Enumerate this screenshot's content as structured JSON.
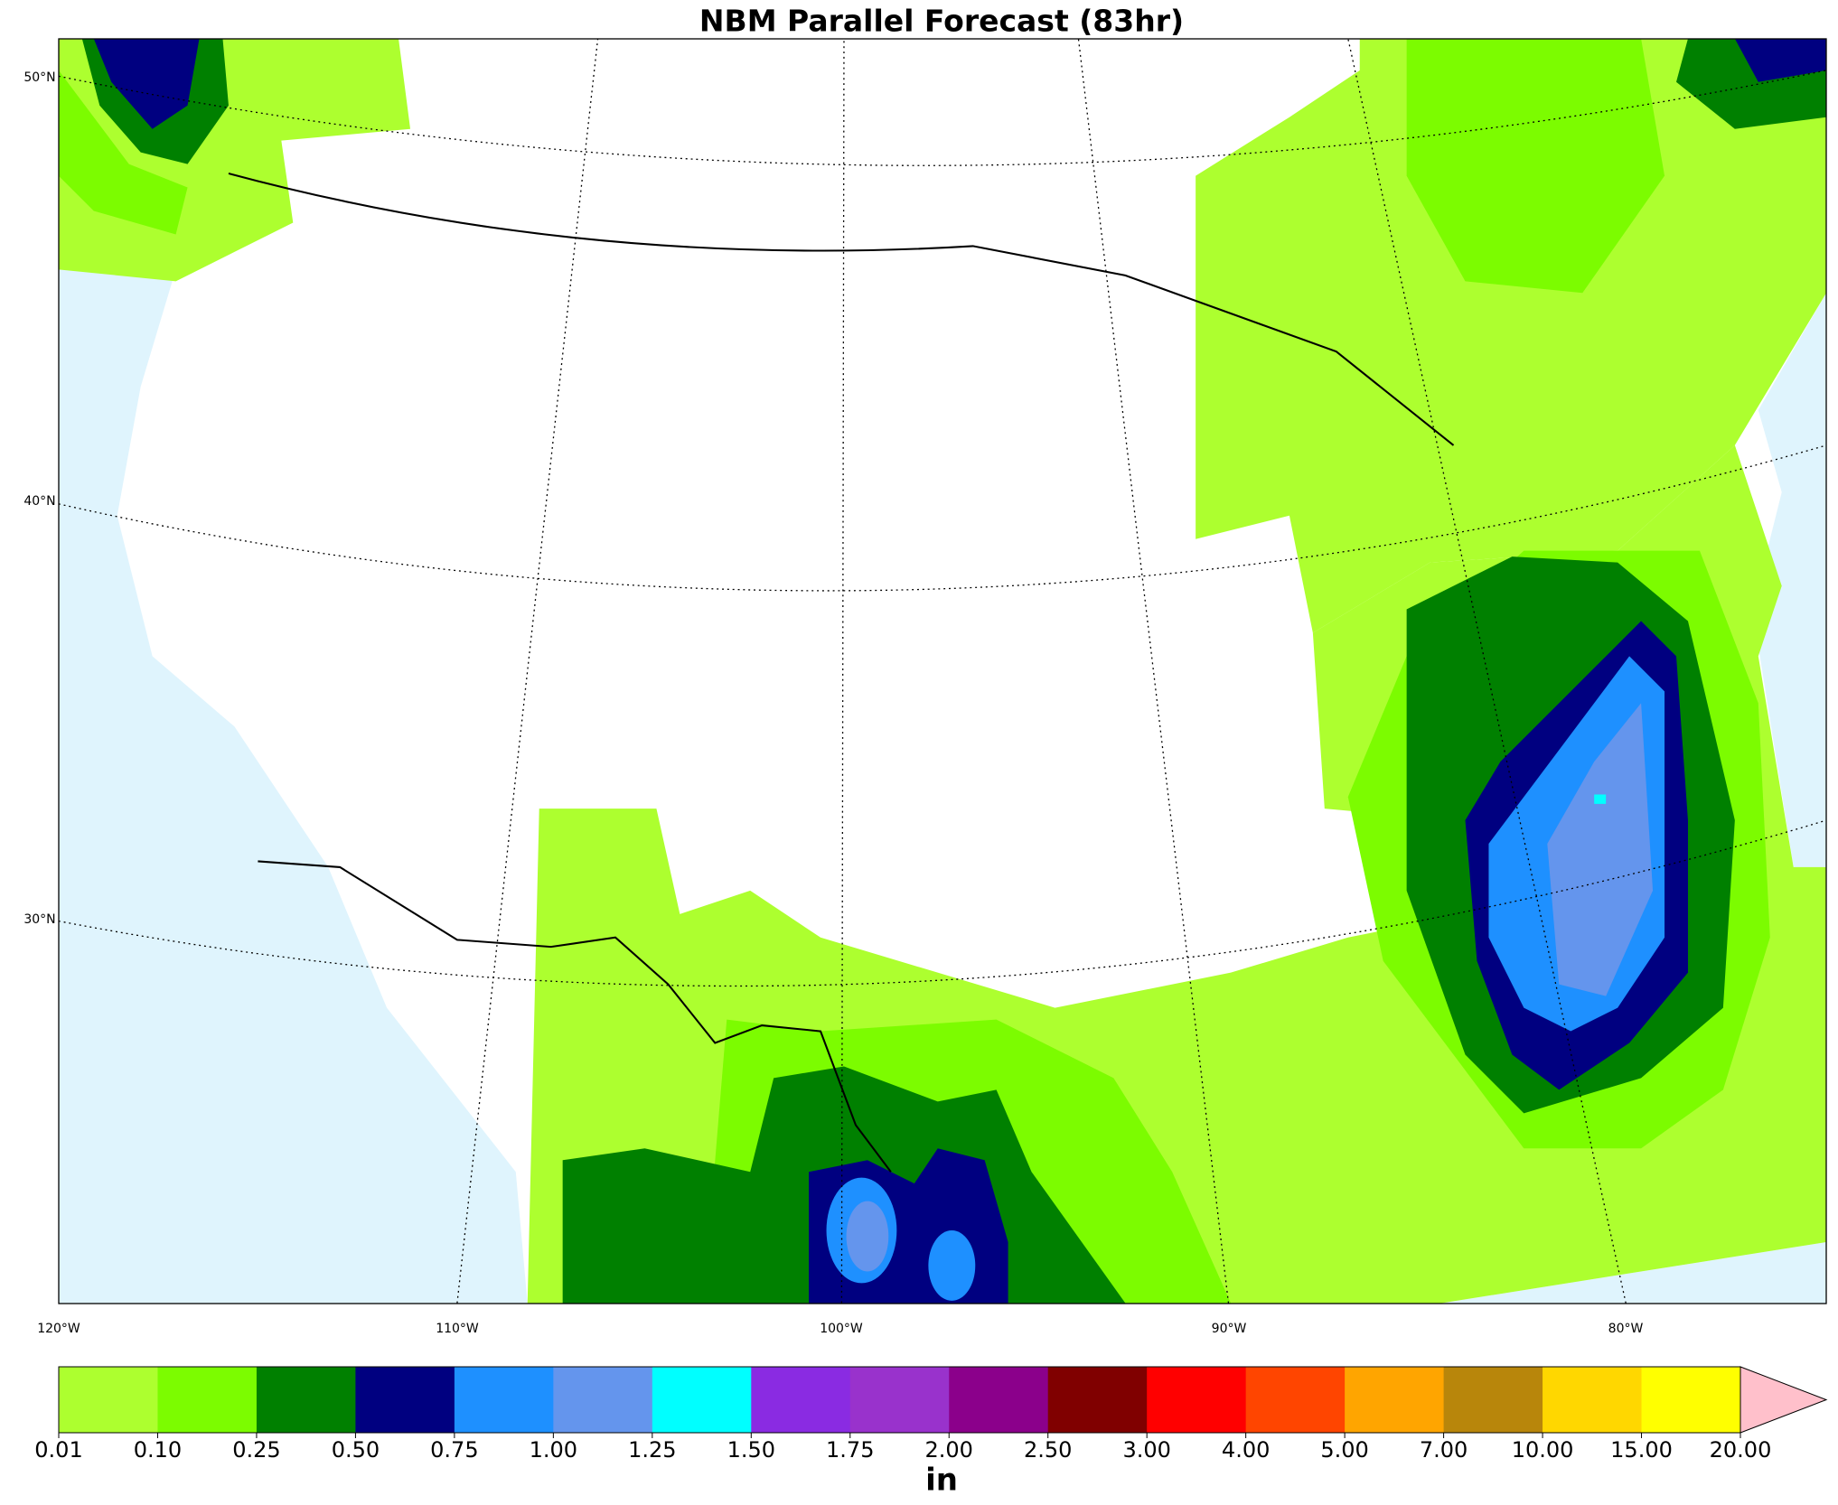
{
  "title": "NBM Parallel Forecast (83hr)",
  "map": {
    "lat_labels": [
      "50°N",
      "40°N",
      "30°N"
    ],
    "lon_labels": [
      "120°W",
      "110°W",
      "100°W",
      "90°W",
      "80°W"
    ]
  },
  "colorbar": {
    "label": "in",
    "ticks": [
      0.01,
      {
        "value": 0.1,
        "label": "0.10"
      },
      0.25,
      {
        "value": 0.5,
        "label": "0.50"
      },
      0.75,
      {
        "value": 1,
        "label": "1.00"
      },
      1.25,
      {
        "value": 1.5,
        "label": "1.50"
      },
      1.75,
      {
        "value": 2,
        "label": "2.00"
      },
      {
        "value": 2.5,
        "label": "2.50"
      },
      {
        "value": 3,
        "label": "3.00"
      },
      {
        "value": 4,
        "label": "4.00"
      },
      {
        "value": 5,
        "label": "5.00"
      },
      {
        "value": 7,
        "label": "7.00"
      },
      {
        "value": 10,
        "label": "10.00"
      },
      {
        "value": 15,
        "label": "15.00"
      },
      {
        "value": 20,
        "label": "20.00"
      }
    ],
    "colors": [
      "#adff2f",
      "#7cfc00",
      "#008000",
      "#000080",
      "#1e90ff",
      "#6495ed",
      "#00ffff",
      "#8a2be2",
      "#9932cc",
      "#8b008b",
      "#800000",
      "#ff0000",
      "#ff4500",
      "#ffa500",
      "#b8860b",
      "#ffd700",
      "#ffff00"
    ],
    "extend_color": "#ffc0cb"
  }
}
